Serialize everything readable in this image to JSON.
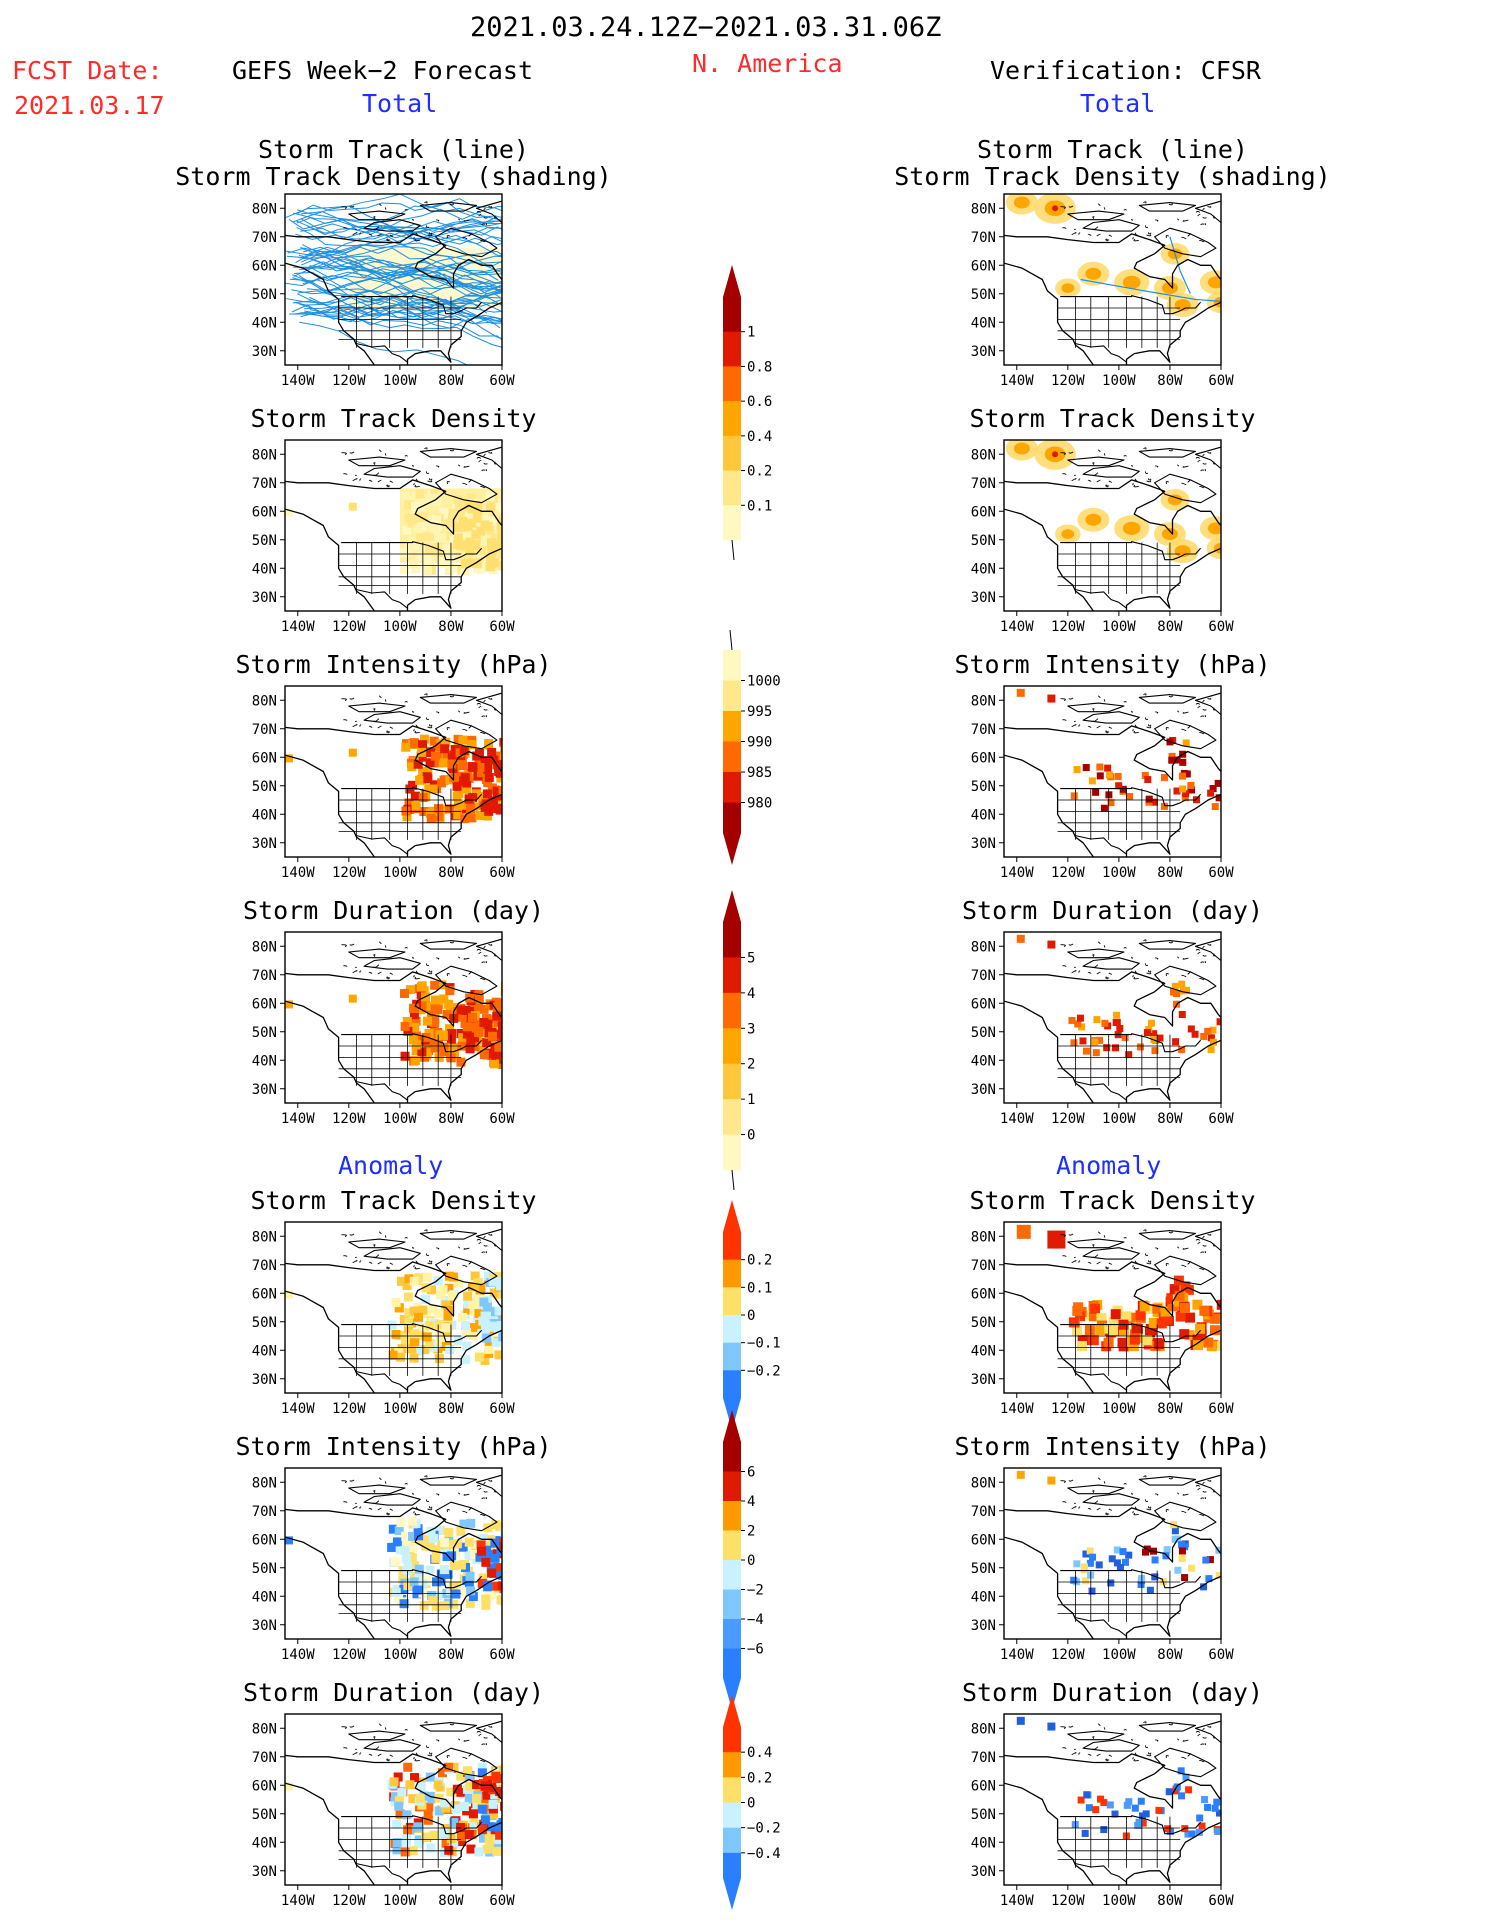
{
  "header": {
    "date_range": "2021.03.24.12Z−2021.03.31.06Z",
    "fcst_label": "FCST Date:",
    "fcst_date": "2021.03.17",
    "left_title": "GEFS Week−2 Forecast",
    "region": "N. America",
    "right_title": "Verification: CFSR",
    "left_section": "Total",
    "right_section": "Total",
    "left_anomaly": "Anomaly",
    "right_anomaly": "Anomaly"
  },
  "axes": {
    "lat_labels": [
      "80N",
      "70N",
      "60N",
      "50N",
      "40N",
      "30N"
    ],
    "lon_labels": [
      "140W",
      "120W",
      "100W",
      "80W",
      "60W"
    ]
  },
  "panels": {
    "left": [
      {
        "title": "Storm Track (line)\nStorm Track Density (shading)",
        "kind": "tracks"
      },
      {
        "title": "Storm Track Density",
        "kind": "total"
      },
      {
        "title": "Storm Intensity (hPa)",
        "kind": "total"
      },
      {
        "title": "Storm Duration (day)",
        "kind": "total"
      },
      {
        "title": "Storm Track Density",
        "kind": "anomaly"
      },
      {
        "title": "Storm Intensity (hPa)",
        "kind": "anomaly"
      },
      {
        "title": "Storm Duration (day)",
        "kind": "anomaly"
      }
    ],
    "right": [
      {
        "title": "Storm Track (line)\nStorm Track Density (shading)",
        "kind": "tracks"
      },
      {
        "title": "Storm Track Density",
        "kind": "total"
      },
      {
        "title": "Storm Intensity (hPa)",
        "kind": "total"
      },
      {
        "title": "Storm Duration (day)",
        "kind": "total"
      },
      {
        "title": "Storm Track Density",
        "kind": "anomaly"
      },
      {
        "title": "Storm Intensity (hPa)",
        "kind": "anomaly"
      },
      {
        "title": "Storm Duration (day)",
        "kind": "anomaly"
      }
    ]
  },
  "colorbars": [
    {
      "name": "track-density",
      "labels": [
        "1",
        "0.8",
        "0.6",
        "0.4",
        "0.2",
        "0.1"
      ],
      "colors": [
        "#a50000",
        "#e01a00",
        "#ff6a00",
        "#ffa500",
        "#ffc83c",
        "#ffe88a",
        "#fff8c0"
      ],
      "arrow_top": true,
      "arrow_bottom": false
    },
    {
      "name": "intensity",
      "labels": [
        "1000",
        "995",
        "990",
        "985",
        "980"
      ],
      "colors": [
        "#fff8c0",
        "#ffe88a",
        "#ffa500",
        "#ff6a00",
        "#e01a00",
        "#a50000"
      ],
      "arrow_top": false,
      "arrow_bottom": true
    },
    {
      "name": "duration",
      "labels": [
        "5",
        "4",
        "3",
        "2",
        "1",
        "0"
      ],
      "colors": [
        "#a50000",
        "#e01a00",
        "#ff6a00",
        "#ffa500",
        "#ffc83c",
        "#ffe88a",
        "#fff8c0"
      ],
      "arrow_top": true,
      "arrow_bottom": false
    },
    {
      "name": "density-anomaly",
      "labels": [
        "0.2",
        "0.1",
        "0",
        "−0.1",
        "−0.2"
      ],
      "colors": [
        "#ff3300",
        "#ff9900",
        "#ffe066",
        "#c8f2ff",
        "#7fc8ff",
        "#2a7fff"
      ],
      "arrow_top": true,
      "arrow_bottom": true
    },
    {
      "name": "intensity-anomaly",
      "labels": [
        "6",
        "4",
        "2",
        "0",
        "−2",
        "−4",
        "−6"
      ],
      "colors": [
        "#a50000",
        "#e01a00",
        "#ff9900",
        "#ffe066",
        "#c8f2ff",
        "#7fc8ff",
        "#4a9aff",
        "#2a7fff"
      ],
      "arrow_top": true,
      "arrow_bottom": true
    },
    {
      "name": "duration-anomaly",
      "labels": [
        "0.4",
        "0.2",
        "0",
        "−0.2",
        "−0.4"
      ],
      "colors": [
        "#ff3300",
        "#ff9900",
        "#ffe066",
        "#c8f2ff",
        "#7fc8ff",
        "#2a7fff"
      ],
      "arrow_top": true,
      "arrow_bottom": true
    }
  ]
}
